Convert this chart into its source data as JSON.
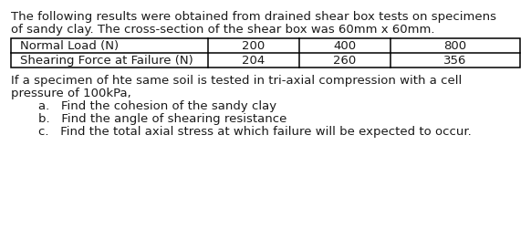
{
  "bg_color": "#ffffff",
  "para1_line1": "The following results were obtained from drained shear box tests on specimens",
  "para1_line2": "of sandy clay. The cross-section of the shear box was 60mm x 60mm.",
  "table_row1": [
    "Normal Load (N)",
    "200",
    "400",
    "800"
  ],
  "table_row2": [
    "Shearing Force at Failure (N)",
    "204",
    "260",
    "356"
  ],
  "para2_line1": "If a specimen of hte same soil is tested in tri-axial compression with a cell",
  "para2_line2": "pressure of 100kPa,",
  "item_a": "a.   Find the cohesion of the sandy clay",
  "item_b": "b.   Find the angle of shearing resistance",
  "item_c": "c.   Find the total axial stress at which failure will be expected to occur.",
  "font_size": 9.5,
  "text_color": "#1a1a1a"
}
